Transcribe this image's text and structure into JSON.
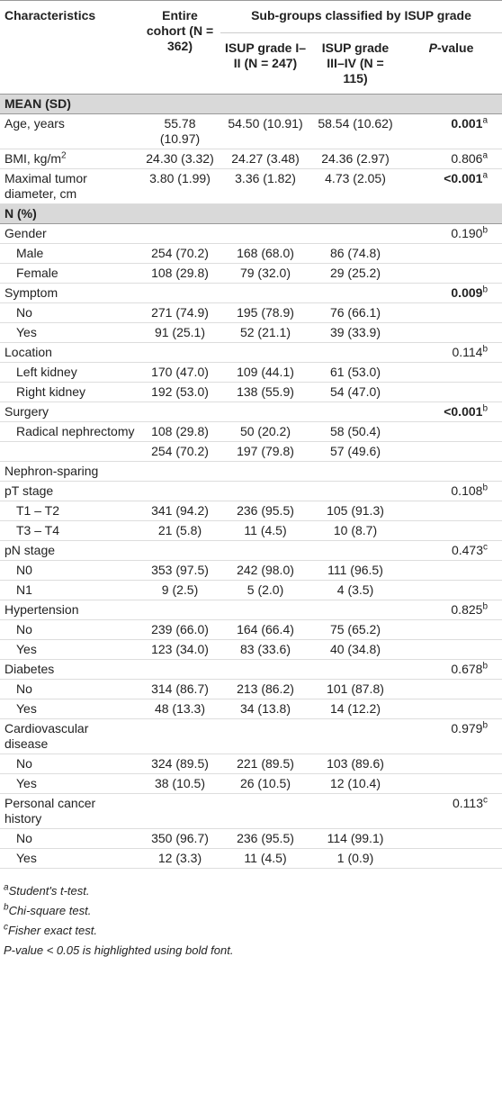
{
  "table": {
    "header": {
      "characteristics": "Characteristics",
      "entire": "Entire cohort (N = 362)",
      "subgroups": "Sub-groups classified by ISUP grade",
      "grade12": "ISUP grade I–II (N = 247)",
      "grade34": "ISUP grade III–IV (N = 115)",
      "pvalue": {
        "italic": "P",
        "text": "-value"
      }
    },
    "rows": [
      {
        "section": "MEAN (SD)"
      },
      {
        "label": "Age, years",
        "cells": [
          "55.78 (10.97)",
          "54.50 (10.91)",
          "58.54 (10.62)"
        ],
        "p": {
          "text": "0.001",
          "sup": "a",
          "bold": true
        }
      },
      {
        "label": {
          "text": "BMI, kg/m",
          "sup": "2"
        },
        "cells": [
          "24.30 (3.32)",
          "24.27 (3.48)",
          "24.36 (2.97)"
        ],
        "p": {
          "text": "0.806",
          "sup": "a"
        }
      },
      {
        "label": "Maximal tumor diameter, cm",
        "cells": [
          "3.80 (1.99)",
          "3.36 (1.82)",
          "4.73 (2.05)"
        ],
        "p": {
          "text": "<0.001",
          "sup": "a",
          "bold": true
        }
      },
      {
        "section": "N (%)"
      },
      {
        "label": "Gender",
        "p": {
          "text": "0.190",
          "sup": "b"
        }
      },
      {
        "label": "Male",
        "indent": true,
        "cells": [
          "254 (70.2)",
          "168 (68.0)",
          "86 (74.8)"
        ]
      },
      {
        "label": "Female",
        "indent": true,
        "cells": [
          "108 (29.8)",
          "79 (32.0)",
          "29 (25.2)"
        ]
      },
      {
        "label": "Symptom",
        "p": {
          "text": "0.009",
          "sup": "b",
          "bold": true
        }
      },
      {
        "label": "No",
        "indent": true,
        "cells": [
          "271 (74.9)",
          "195 (78.9)",
          "76 (66.1)"
        ]
      },
      {
        "label": "Yes",
        "indent": true,
        "cells": [
          "91 (25.1)",
          "52 (21.1)",
          "39 (33.9)"
        ]
      },
      {
        "label": "Location",
        "p": {
          "text": "0.114",
          "sup": "b"
        }
      },
      {
        "label": "Left kidney",
        "indent": true,
        "cells": [
          "170 (47.0)",
          "109 (44.1)",
          "61 (53.0)"
        ]
      },
      {
        "label": "Right kidney",
        "indent": true,
        "cells": [
          "192 (53.0)",
          "138 (55.9)",
          "54 (47.0)"
        ]
      },
      {
        "label": "Surgery",
        "p": {
          "text": "<0.001",
          "sup": "b",
          "bold": true
        }
      },
      {
        "label": "Radical nephrectomy",
        "indent": true,
        "cells": [
          "108 (29.8)",
          "50 (20.2)",
          "58 (50.4)"
        ]
      },
      {
        "cells": [
          "254 (70.2)",
          "197 (79.8)",
          "57 (49.6)"
        ]
      },
      {
        "label": "Nephron-sparing"
      },
      {
        "label": "pT stage",
        "p": {
          "text": "0.108",
          "sup": "b"
        }
      },
      {
        "label": "T1 – T2",
        "indent": true,
        "cells": [
          "341 (94.2)",
          "236 (95.5)",
          "105 (91.3)"
        ]
      },
      {
        "label": "T3 – T4",
        "indent": true,
        "cells": [
          "21 (5.8)",
          "11 (4.5)",
          "10 (8.7)"
        ]
      },
      {
        "label": "pN stage",
        "p": {
          "text": "0.473",
          "sup": "c"
        }
      },
      {
        "label": "N0",
        "indent": true,
        "cells": [
          "353 (97.5)",
          "242 (98.0)",
          "111 (96.5)"
        ]
      },
      {
        "label": "N1",
        "indent": true,
        "cells": [
          "9 (2.5)",
          "5 (2.0)",
          "4 (3.5)"
        ]
      },
      {
        "label": "Hypertension",
        "p": {
          "text": "0.825",
          "sup": "b"
        }
      },
      {
        "label": "No",
        "indent": true,
        "cells": [
          "239 (66.0)",
          "164 (66.4)",
          "75 (65.2)"
        ]
      },
      {
        "label": "Yes",
        "indent": true,
        "cells": [
          "123 (34.0)",
          "83 (33.6)",
          "40 (34.8)"
        ]
      },
      {
        "label": "Diabetes",
        "p": {
          "text": "0.678",
          "sup": "b"
        }
      },
      {
        "label": "No",
        "indent": true,
        "cells": [
          "314 (86.7)",
          "213 (86.2)",
          "101 (87.8)"
        ]
      },
      {
        "label": "Yes",
        "indent": true,
        "cells": [
          "48 (13.3)",
          "34 (13.8)",
          "14 (12.2)"
        ]
      },
      {
        "label": "Cardiovascular disease",
        "p": {
          "text": "0.979",
          "sup": "b"
        }
      },
      {
        "label": "No",
        "indent": true,
        "cells": [
          "324 (89.5)",
          "221 (89.5)",
          "103 (89.6)"
        ]
      },
      {
        "label": "Yes",
        "indent": true,
        "cells": [
          "38 (10.5)",
          "26 (10.5)",
          "12 (10.4)"
        ]
      },
      {
        "label": "Personal cancer history",
        "p": {
          "text": "0.113",
          "sup": "c"
        }
      },
      {
        "label": "No",
        "indent": true,
        "cells": [
          "350 (96.7)",
          "236 (95.5)",
          "114 (99.1)"
        ]
      },
      {
        "label": "Yes",
        "indent": true,
        "cells": [
          "12 (3.3)",
          "11 (4.5)",
          "1 (0.9)"
        ]
      }
    ],
    "footnotes": [
      {
        "sup": "a",
        "text": "Student's t-test."
      },
      {
        "sup": "b",
        "text": "Chi-square test."
      },
      {
        "sup": "c",
        "text": "Fisher exact test."
      },
      {
        "italic": "P",
        "text": "-value < 0.05 is highlighted using bold font."
      }
    ]
  }
}
